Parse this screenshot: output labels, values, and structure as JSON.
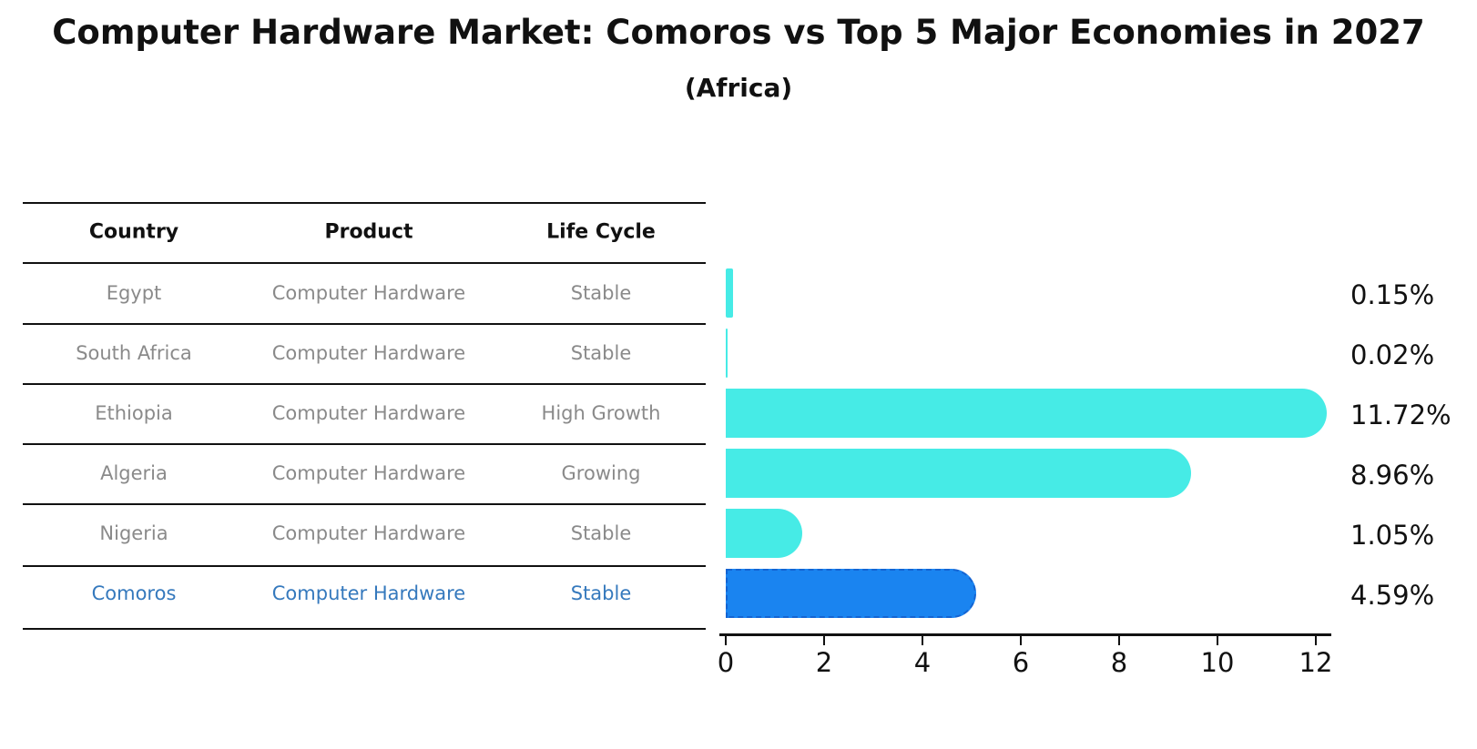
{
  "title": "Computer Hardware Market: Comoros vs Top 5 Major Economies in 2027",
  "subtitle": "(Africa)",
  "table": {
    "headers": [
      "Country",
      "Product",
      "Life Cycle"
    ],
    "rows": [
      {
        "country": "Egypt",
        "product": "Computer Hardware",
        "life_cycle": "Stable",
        "highlight": false
      },
      {
        "country": "South Africa",
        "product": "Computer Hardware",
        "life_cycle": "Stable",
        "highlight": false
      },
      {
        "country": "Ethiopia",
        "product": "Computer Hardware",
        "life_cycle": "High Growth",
        "highlight": false
      },
      {
        "country": "Algeria",
        "product": "Computer Hardware",
        "life_cycle": "Growing",
        "highlight": false
      },
      {
        "country": "Nigeria",
        "product": "Computer Hardware",
        "life_cycle": "Stable",
        "highlight": true
      }
    ],
    "highlight_row": {
      "country": "Comoros",
      "product": "Computer Hardware",
      "life_cycle": "Stable"
    }
  },
  "chart_data": {
    "type": "bar",
    "orientation": "horizontal",
    "title": "Computer Hardware Market: Comoros vs Top 5 Major Economies in 2027 (Africa)",
    "categories": [
      "Egypt",
      "South Africa",
      "Ethiopia",
      "Algeria",
      "Nigeria",
      "Comoros"
    ],
    "values": [
      0.15,
      0.02,
      11.72,
      8.96,
      1.05,
      4.59
    ],
    "value_labels": [
      "0.15%",
      "0.02%",
      "11.72%",
      "8.96%",
      "1.05%",
      "4.59%"
    ],
    "xlabel": "",
    "ylabel": "",
    "xlim": [
      0,
      12.4
    ],
    "x_ticks": [
      0,
      2,
      4,
      6,
      8,
      10,
      12
    ],
    "grid": false,
    "legend": "none",
    "highlight_index": 5
  },
  "colors": {
    "bar": "#46ebe6",
    "highlight_bar": "#1a84f0",
    "highlight_border": "#1464d2",
    "row_text": "#8a8a8a",
    "highlight_text": "#3579bd",
    "header_text": "#111111",
    "line": "#111111"
  }
}
